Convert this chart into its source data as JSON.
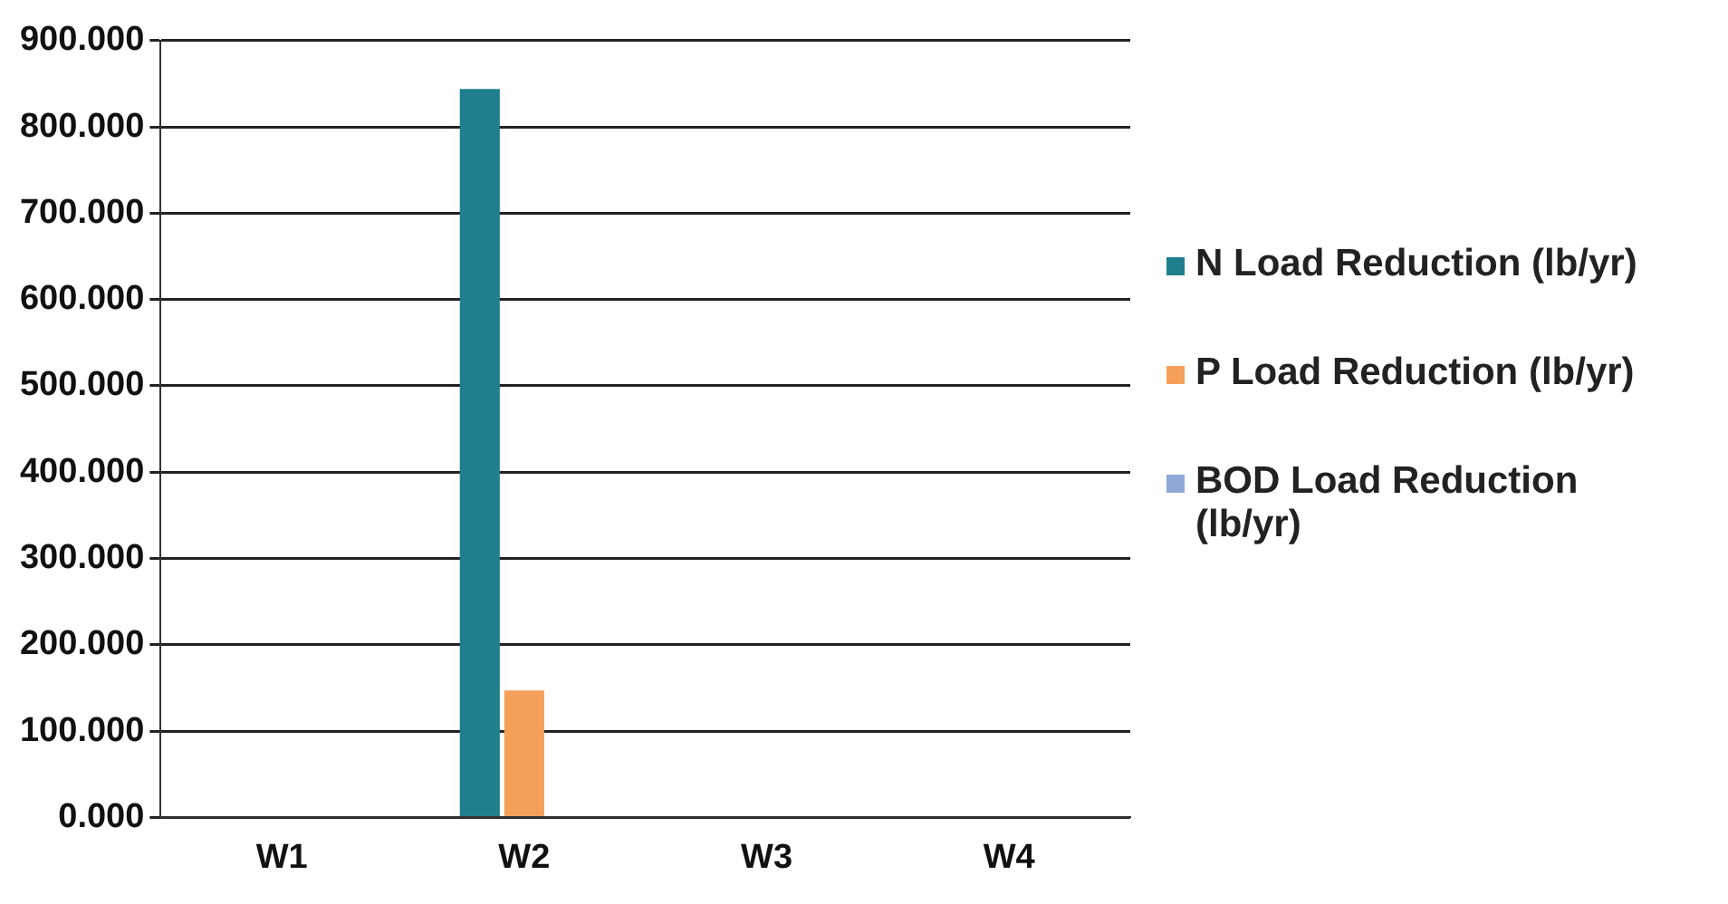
{
  "chart_data": {
    "type": "bar",
    "categories": [
      "W1",
      "W2",
      "W3",
      "W4"
    ],
    "series": [
      {
        "name": "N Load Reduction (lb/yr)",
        "color": "#1f7f8c",
        "values": [
          0,
          844,
          0,
          0
        ]
      },
      {
        "name": "P Load Reduction (lb/yr)",
        "color": "#f5a05a",
        "values": [
          0,
          147,
          0,
          0
        ]
      },
      {
        "name": "BOD Load Reduction (lb/yr)",
        "color": "#8fa8d8",
        "values": [
          0,
          0,
          0,
          0
        ]
      }
    ],
    "ylim": [
      0,
      900
    ],
    "yticks": [
      {
        "value": 0,
        "label": "0.000"
      },
      {
        "value": 100,
        "label": "100.000"
      },
      {
        "value": 200,
        "label": "200.000"
      },
      {
        "value": 300,
        "label": "300.000"
      },
      {
        "value": 400,
        "label": "400.000"
      },
      {
        "value": 500,
        "label": "500.000"
      },
      {
        "value": 600,
        "label": "600.000"
      },
      {
        "value": 700,
        "label": "700.000"
      },
      {
        "value": 800,
        "label": "800.000"
      },
      {
        "value": 900,
        "label": "900.000"
      }
    ],
    "grid": "y",
    "legend": "right"
  }
}
